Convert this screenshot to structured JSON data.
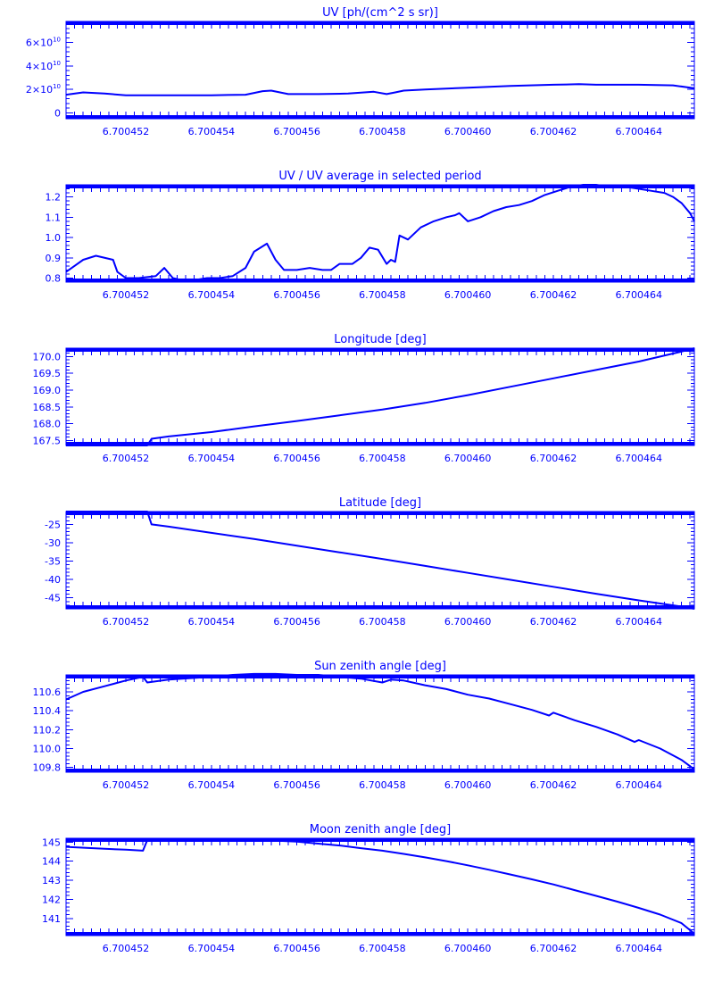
{
  "colors": {
    "foreground": "#0000ff",
    "background": "#ffffff"
  },
  "chart_data": [
    {
      "type": "line",
      "title": "UV [ph/(cm^2 s sr)]",
      "xlim": [
        6.7004506,
        6.7004653
      ],
      "ylim": [
        -5000000000.0,
        78000000000.0
      ],
      "xticks": [
        "6.700452",
        "6.700454",
        "6.700456",
        "6.700458",
        "6.700460",
        "6.700462",
        "6.700464"
      ],
      "xtick_values": [
        6.700452,
        6.700454,
        6.700456,
        6.700458,
        6.70046,
        6.700462,
        6.700464
      ],
      "yticks": [
        {
          "value": 0,
          "mantissa": "0",
          "exponent": ""
        },
        {
          "value": 20000000000.0,
          "mantissa": "2×10",
          "exponent": "10"
        },
        {
          "value": 40000000000.0,
          "mantissa": "4×10",
          "exponent": "10"
        },
        {
          "value": 60000000000.0,
          "mantissa": "6×10",
          "exponent": "10"
        }
      ],
      "x": [
        6.7004506,
        6.700451,
        6.7004515,
        6.700452,
        6.700453,
        6.700454,
        6.7004548,
        6.7004552,
        6.7004554,
        6.7004558,
        6.7004565,
        6.7004572,
        6.7004578,
        6.7004581,
        6.7004583,
        6.7004585,
        6.700459,
        6.70046,
        6.700461,
        6.700462,
        6.7004626,
        6.700463,
        6.700464,
        6.7004648,
        6.7004653
      ],
      "y": [
        15500000000.0,
        17500000000.0,
        16500000000.0,
        15000000000.0,
        15000000000.0,
        15000000000.0,
        15500000000.0,
        18500000000.0,
        19000000000.0,
        16000000000.0,
        16000000000.0,
        16500000000.0,
        18000000000.0,
        16000000000.0,
        17500000000.0,
        19000000000.0,
        20000000000.0,
        21500000000.0,
        23000000000.0,
        24000000000.0,
        24500000000.0,
        24000000000.0,
        24000000000.0,
        23500000000.0,
        21000000000.0
      ]
    },
    {
      "type": "line",
      "title": "UV / UV average in selected period",
      "xlim": [
        6.7004506,
        6.7004653
      ],
      "ylim": [
        0.78,
        1.26
      ],
      "xticks": [
        "6.700452",
        "6.700454",
        "6.700456",
        "6.700458",
        "6.700460",
        "6.700462",
        "6.700464"
      ],
      "xtick_values": [
        6.700452,
        6.700454,
        6.700456,
        6.700458,
        6.70046,
        6.700462,
        6.700464
      ],
      "yticks": [
        {
          "value": 0.8,
          "label": "0.8"
        },
        {
          "value": 0.9,
          "label": "0.9"
        },
        {
          "value": 1.0,
          "label": "1.0"
        },
        {
          "value": 1.1,
          "label": "1.1"
        },
        {
          "value": 1.2,
          "label": "1.2"
        }
      ],
      "x": [
        6.7004506,
        6.7004508,
        6.700451,
        6.7004513,
        6.7004517,
        6.7004518,
        6.700452,
        6.7004523,
        6.7004527,
        6.7004529,
        6.7004531,
        6.7004533,
        6.7004536,
        6.7004539,
        6.7004542,
        6.7004545,
        6.7004548,
        6.700455,
        6.7004553,
        6.7004555,
        6.7004557,
        6.700456,
        6.7004563,
        6.7004566,
        6.7004568,
        6.700457,
        6.7004573,
        6.7004575,
        6.7004577,
        6.7004579,
        6.7004581,
        6.7004582,
        6.7004583,
        6.7004584,
        6.7004586,
        6.7004589,
        6.7004592,
        6.7004595,
        6.7004597,
        6.7004598,
        6.70046,
        6.7004603,
        6.7004606,
        6.7004609,
        6.7004612,
        6.7004615,
        6.7004618,
        6.7004621,
        6.7004624,
        6.7004627,
        6.700463,
        6.7004633,
        6.7004637,
        6.700464,
        6.7004643,
        6.7004646,
        6.7004648,
        6.700465,
        6.7004652,
        6.7004653
      ],
      "y": [
        0.83,
        0.86,
        0.89,
        0.91,
        0.89,
        0.83,
        0.8,
        0.8,
        0.81,
        0.85,
        0.8,
        0.79,
        0.79,
        0.8,
        0.8,
        0.81,
        0.85,
        0.93,
        0.97,
        0.89,
        0.84,
        0.84,
        0.85,
        0.84,
        0.84,
        0.87,
        0.87,
        0.9,
        0.95,
        0.94,
        0.87,
        0.89,
        0.88,
        1.01,
        0.99,
        1.05,
        1.08,
        1.1,
        1.11,
        1.12,
        1.08,
        1.1,
        1.13,
        1.15,
        1.16,
        1.18,
        1.21,
        1.23,
        1.25,
        1.26,
        1.26,
        1.25,
        1.25,
        1.24,
        1.23,
        1.22,
        1.2,
        1.17,
        1.12,
        1.08
      ]
    },
    {
      "type": "line",
      "title": "Longitude [deg]",
      "xlim": [
        6.7004506,
        6.7004653
      ],
      "ylim": [
        167.35,
        170.25
      ],
      "xticks": [
        "6.700452",
        "6.700454",
        "6.700456",
        "6.700458",
        "6.700460",
        "6.700462",
        "6.700464"
      ],
      "xtick_values": [
        6.700452,
        6.700454,
        6.700456,
        6.700458,
        6.70046,
        6.700462,
        6.700464
      ],
      "yticks": [
        {
          "value": 167.5,
          "label": "167.5"
        },
        {
          "value": 168.0,
          "label": "168.0"
        },
        {
          "value": 168.5,
          "label": "168.5"
        },
        {
          "value": 169.0,
          "label": "169.0"
        },
        {
          "value": 169.5,
          "label": "169.5"
        },
        {
          "value": 170.0,
          "label": "170.0"
        }
      ],
      "x": [
        6.7004506,
        6.700452,
        6.7004525,
        6.7004526,
        6.700453,
        6.700454,
        6.700455,
        6.700456,
        6.700457,
        6.700458,
        6.700459,
        6.70046,
        6.700461,
        6.700462,
        6.700463,
        6.700464,
        6.700465,
        6.7004653
      ],
      "y": [
        167.35,
        167.35,
        167.35,
        167.55,
        167.62,
        167.75,
        167.92,
        168.08,
        168.25,
        168.42,
        168.62,
        168.85,
        169.1,
        169.35,
        169.6,
        169.85,
        170.15,
        170.25
      ]
    },
    {
      "type": "line",
      "title": "Latitude [deg]",
      "xlim": [
        6.7004506,
        6.7004653
      ],
      "ylim": [
        -48,
        -21.5
      ],
      "xticks": [
        "6.700452",
        "6.700454",
        "6.700456",
        "6.700458",
        "6.700460",
        "6.700462",
        "6.700464"
      ],
      "xtick_values": [
        6.700452,
        6.700454,
        6.700456,
        6.700458,
        6.70046,
        6.700462,
        6.700464
      ],
      "yticks": [
        {
          "value": -45,
          "label": "-45"
        },
        {
          "value": -40,
          "label": "-40"
        },
        {
          "value": -35,
          "label": "-35"
        },
        {
          "value": -30,
          "label": "-30"
        },
        {
          "value": -25,
          "label": "-25"
        }
      ],
      "x": [
        6.7004506,
        6.700452,
        6.7004525,
        6.7004526,
        6.700453,
        6.700454,
        6.700455,
        6.700456,
        6.700457,
        6.700458,
        6.700459,
        6.70046,
        6.700461,
        6.700462,
        6.700463,
        6.700464,
        6.700465,
        6.7004653
      ],
      "y": [
        -21.5,
        -21.5,
        -21.5,
        -25.0,
        -25.6,
        -27.3,
        -29.0,
        -30.8,
        -32.6,
        -34.4,
        -36.3,
        -38.2,
        -40.1,
        -42.0,
        -43.9,
        -45.7,
        -47.4,
        -48.0
      ]
    },
    {
      "type": "line",
      "title": "Sun zenith angle [deg]",
      "xlim": [
        6.7004506,
        6.7004653
      ],
      "ylim": [
        109.75,
        110.78
      ],
      "xticks": [
        "6.700452",
        "6.700454",
        "6.700456",
        "6.700458",
        "6.700460",
        "6.700462",
        "6.700464"
      ],
      "xtick_values": [
        6.700452,
        6.700454,
        6.700456,
        6.700458,
        6.70046,
        6.700462,
        6.700464
      ],
      "yticks": [
        {
          "value": 109.8,
          "label": "109.8"
        },
        {
          "value": 110.0,
          "label": "110.0"
        },
        {
          "value": 110.2,
          "label": "110.2"
        },
        {
          "value": 110.4,
          "label": "110.4"
        },
        {
          "value": 110.6,
          "label": "110.6"
        }
      ],
      "x": [
        6.7004506,
        6.700451,
        6.7004515,
        6.700452,
        6.7004524,
        6.7004525,
        6.700453,
        6.700454,
        6.7004545,
        6.700455,
        6.7004555,
        6.700456,
        6.7004565,
        6.700457,
        6.7004575,
        6.700458,
        6.7004582,
        6.7004585,
        6.700459,
        6.7004595,
        6.70046,
        6.7004605,
        6.700461,
        6.7004615,
        6.7004619,
        6.700462,
        6.7004625,
        6.700463,
        6.7004635,
        6.7004639,
        6.700464,
        6.7004645,
        6.700465,
        6.7004653
      ],
      "y": [
        110.52,
        110.6,
        110.66,
        110.72,
        110.76,
        110.7,
        110.73,
        110.76,
        110.78,
        110.79,
        110.79,
        110.78,
        110.78,
        110.76,
        110.74,
        110.7,
        110.73,
        110.72,
        110.67,
        110.63,
        110.57,
        110.53,
        110.47,
        110.41,
        110.35,
        110.38,
        110.3,
        110.23,
        110.15,
        110.07,
        110.09,
        110.0,
        109.88,
        109.78
      ]
    },
    {
      "type": "line",
      "title": "Moon zenith angle [deg]",
      "xlim": [
        6.7004506,
        6.7004653
      ],
      "ylim": [
        140.1,
        145.2
      ],
      "xticks": [
        "6.700452",
        "6.700454",
        "6.700456",
        "6.700458",
        "6.700460",
        "6.700462",
        "6.700464"
      ],
      "xtick_values": [
        6.700452,
        6.700454,
        6.700456,
        6.700458,
        6.70046,
        6.700462,
        6.700464
      ],
      "yticks": [
        {
          "value": 141,
          "label": "141"
        },
        {
          "value": 142,
          "label": "142"
        },
        {
          "value": 143,
          "label": "143"
        },
        {
          "value": 144,
          "label": "144"
        },
        {
          "value": 145,
          "label": "145"
        }
      ],
      "x": [
        6.7004506,
        6.7004515,
        6.700452,
        6.7004524,
        6.7004525,
        6.700453,
        6.7004535,
        6.700454,
        6.7004545,
        6.700455,
        6.7004555,
        6.700456,
        6.7004565,
        6.700457,
        6.7004575,
        6.700458,
        6.7004585,
        6.700459,
        6.7004595,
        6.70046,
        6.7004605,
        6.700461,
        6.7004615,
        6.700462,
        6.7004625,
        6.700463,
        6.7004635,
        6.700464,
        6.7004645,
        6.700465,
        6.7004653
      ],
      "y": [
        144.75,
        144.65,
        144.6,
        144.55,
        145.1,
        145.12,
        145.15,
        145.15,
        145.14,
        145.12,
        145.08,
        145.02,
        144.92,
        144.82,
        144.68,
        144.55,
        144.38,
        144.2,
        144.0,
        143.78,
        143.55,
        143.3,
        143.05,
        142.78,
        142.48,
        142.18,
        141.88,
        141.55,
        141.2,
        140.75,
        140.2
      ]
    }
  ]
}
